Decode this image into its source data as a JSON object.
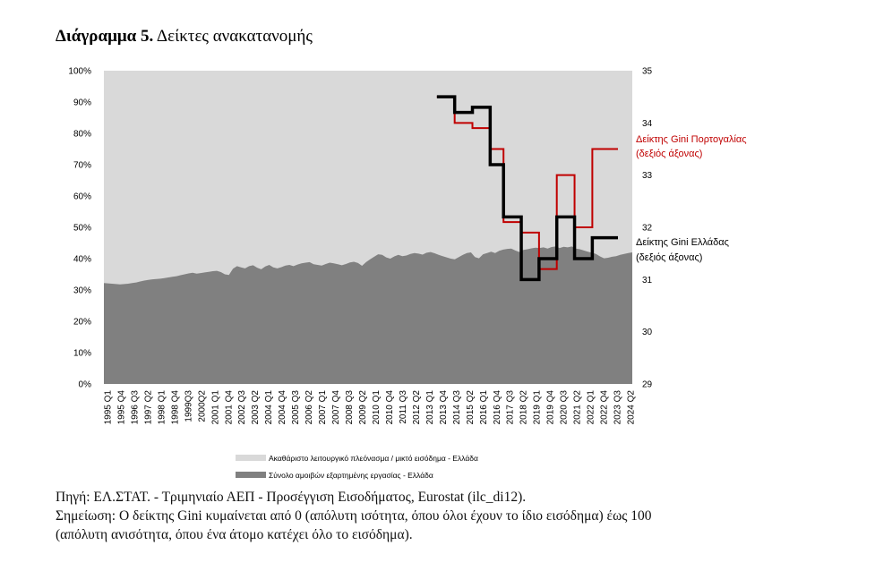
{
  "title": {
    "bold": "Διάγραμμα 5.",
    "rest": " Δείκτες ανακατανομής"
  },
  "notes": {
    "source": "Πηγή: ΕΛ.ΣΤΑΤ. - Τριμηνιαίο ΑΕΠ - Προσέγγιση Εισοδήματος, Eurostat (ilc_di12).",
    "note_line1": "Σημείωση: Ο δείκτης Gini κυμαίνεται από 0 (απόλυτη ισότητα, όπου όλοι έχουν το ίδιο εισόδημα) έως 100",
    "note_line2": "(απόλυτη ανισότητα, όπου ένα άτομο κατέχει όλο το εισόδημα)."
  },
  "colors": {
    "gross_operating_surplus": "#d9d9d9",
    "compensation": "#808080",
    "gini_portugal": "#c00000",
    "gini_greece": "#000000"
  },
  "chart_data": {
    "type": "area",
    "left_axis": {
      "ylim": [
        0,
        100
      ],
      "ticks": [
        "0%",
        "10%",
        "20%",
        "30%",
        "40%",
        "50%",
        "60%",
        "70%",
        "80%",
        "90%",
        "100%"
      ]
    },
    "right_axis": {
      "ylim": [
        29,
        35
      ],
      "ticks": [
        "29",
        "30",
        "31",
        "32",
        "33",
        "34",
        "35"
      ]
    },
    "x_tick_labels": [
      "1995 Q1",
      "1995 Q4",
      "1996 Q3",
      "1997 Q2",
      "1998 Q1",
      "1998 Q4",
      "1999Q3",
      "2000Q2",
      "2001 Q1",
      "2001 Q4",
      "2002 Q3",
      "2003 Q2",
      "2004 Q1",
      "2004 Q4",
      "2005 Q3",
      "2006 Q2",
      "2007 Q1",
      "2007 Q4",
      "2008 Q3",
      "2009 Q2",
      "2010 Q1",
      "2010 Q4",
      "2011 Q3",
      "2012 Q2",
      "2013 Q1",
      "2013 Q4",
      "2014 Q3",
      "2015 Q2",
      "2016 Q1",
      "2016 Q4",
      "2017 Q3",
      "2018 Q2",
      "2019 Q1",
      "2019 Q4",
      "2020 Q3",
      "2021 Q2",
      "2022 Q1",
      "2022 Q4",
      "2023 Q3",
      "2024 Q2"
    ],
    "legend": [
      "Ακαθάριστο λειτουργικό πλεόνασμα / μικτό εισόδημα - Ελλάδα",
      "Σύνολο αμοιβών εξαρτημένης εργασίας - Ελλάδα"
    ],
    "series": [
      {
        "name": "Σύνολο αμοιβών εξαρτημένης εργασίας - Ελλάδα",
        "axis": "left",
        "type": "area",
        "quarter_start": "1995 Q1",
        "values": [
          32.2,
          32.1,
          32.0,
          31.9,
          31.8,
          31.9,
          32.0,
          32.2,
          32.4,
          32.7,
          33.0,
          33.2,
          33.4,
          33.5,
          33.6,
          33.8,
          34.0,
          34.2,
          34.4,
          34.7,
          35.0,
          35.3,
          35.5,
          35.2,
          35.4,
          35.6,
          35.8,
          36.0,
          36.1,
          35.7,
          35.0,
          34.8,
          36.8,
          37.6,
          37.2,
          36.9,
          37.6,
          37.9,
          37.1,
          36.6,
          37.5,
          38.0,
          37.2,
          36.9,
          37.3,
          37.8,
          38.0,
          37.6,
          38.1,
          38.5,
          38.7,
          38.9,
          38.2,
          38.0,
          37.8,
          38.3,
          38.7,
          38.5,
          38.2,
          37.9,
          38.3,
          38.8,
          39.0,
          38.6,
          37.7,
          38.9,
          39.8,
          40.6,
          41.4,
          41.2,
          40.4,
          40.0,
          40.7,
          41.2,
          40.8,
          41.0,
          41.5,
          41.8,
          41.6,
          41.3,
          41.9,
          42.1,
          41.7,
          41.2,
          40.8,
          40.4,
          40.0,
          39.8,
          40.5,
          41.2,
          41.8,
          42.0,
          40.5,
          40.1,
          41.4,
          41.8,
          42.2,
          41.8,
          42.5,
          42.9,
          43.1,
          43.2,
          42.6,
          42.1,
          42.8,
          43.0,
          43.3,
          43.5,
          43.4,
          43.6,
          43.2,
          43.7,
          43.9,
          43.4,
          43.8,
          43.6,
          43.9,
          43.2,
          43.0,
          42.6,
          42.2,
          41.9,
          41.5,
          40.7,
          40.1,
          40.3,
          40.6,
          40.8,
          41.2,
          41.5,
          41.8,
          42.0
        ]
      },
      {
        "name": "Δείκτης Gini Πορτογαλίας (δεξιός άξονας)",
        "axis": "right",
        "type": "step",
        "points": [
          [
            "2013 Q4",
            34.5
          ],
          [
            "2014 Q4",
            34.0
          ],
          [
            "2015 Q4",
            33.9
          ],
          [
            "2016 Q4",
            33.5
          ],
          [
            "2017 Q3",
            32.1
          ],
          [
            "2018 Q3",
            31.9
          ],
          [
            "2019 Q3",
            31.2
          ],
          [
            "2020 Q3",
            33.0
          ],
          [
            "2021 Q3",
            32.0
          ],
          [
            "2022 Q3",
            33.5
          ],
          [
            "2023 Q3",
            33.5
          ]
        ]
      },
      {
        "name": "Δείκτης Gini Ελλάδας (δεξιός άξονας)",
        "axis": "right",
        "type": "step",
        "points": [
          [
            "2013 Q4",
            34.5
          ],
          [
            "2014 Q4",
            34.2
          ],
          [
            "2015 Q4",
            34.3
          ],
          [
            "2016 Q4",
            33.2
          ],
          [
            "2017 Q3",
            32.2
          ],
          [
            "2018 Q3",
            31.0
          ],
          [
            "2019 Q3",
            31.4
          ],
          [
            "2020 Q3",
            32.2
          ],
          [
            "2021 Q3",
            31.4
          ],
          [
            "2022 Q3",
            31.8
          ],
          [
            "2023 Q3",
            31.8
          ]
        ]
      }
    ],
    "series_labels": {
      "portugal": [
        "Δείκτης Gini Πορτογαλίας",
        "(δεξιός άξονας)"
      ],
      "greece": [
        "Δείκτης Gini Ελλάδας",
        "(δεξιός άξονας)"
      ]
    }
  }
}
